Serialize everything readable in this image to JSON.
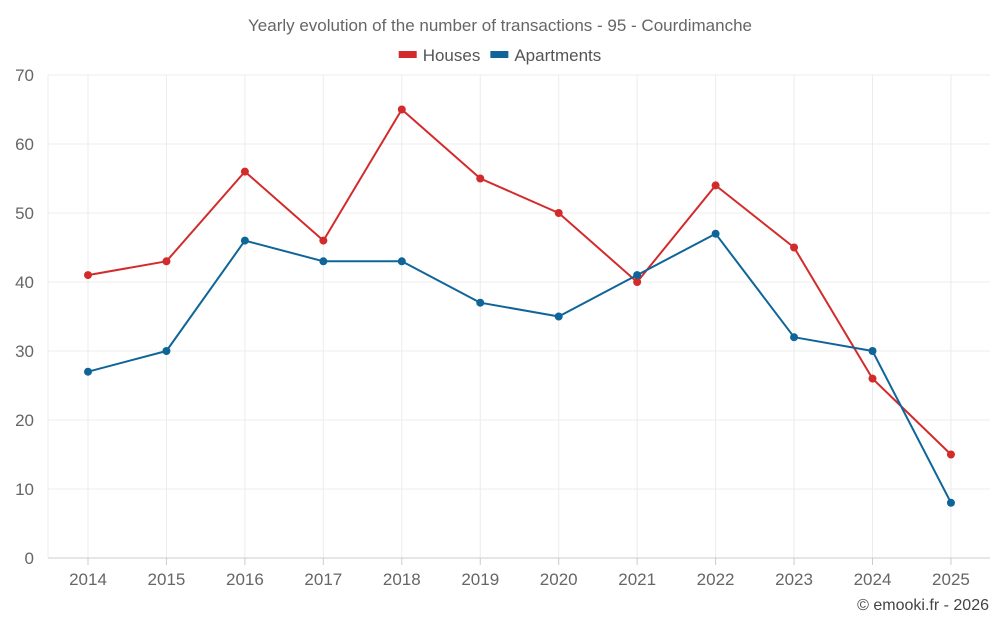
{
  "chart_data": {
    "type": "line",
    "title": "Yearly evolution of the number of transactions - 95 - Courdimanche",
    "categories": [
      "2014",
      "2015",
      "2016",
      "2017",
      "2018",
      "2019",
      "2020",
      "2021",
      "2022",
      "2023",
      "2024",
      "2025"
    ],
    "series": [
      {
        "name": "Houses",
        "color": "#d32b2b",
        "values": [
          41,
          43,
          56,
          46,
          65,
          55,
          50,
          40,
          54,
          45,
          26,
          15
        ]
      },
      {
        "name": "Apartments",
        "color": "#0f6599",
        "values": [
          27,
          30,
          46,
          43,
          43,
          37,
          35,
          41,
          47,
          32,
          30,
          8
        ]
      }
    ],
    "xlabel": "",
    "ylabel": "",
    "ylim": [
      0,
      70
    ],
    "yticks": [
      0,
      10,
      20,
      30,
      40,
      50,
      60,
      70
    ],
    "grid": true,
    "legend_position": "top-center"
  },
  "credit": "© emooki.fr - 2026",
  "colors": {
    "grid": "#ececec",
    "axis": "#cccccc",
    "text": "#666666"
  }
}
